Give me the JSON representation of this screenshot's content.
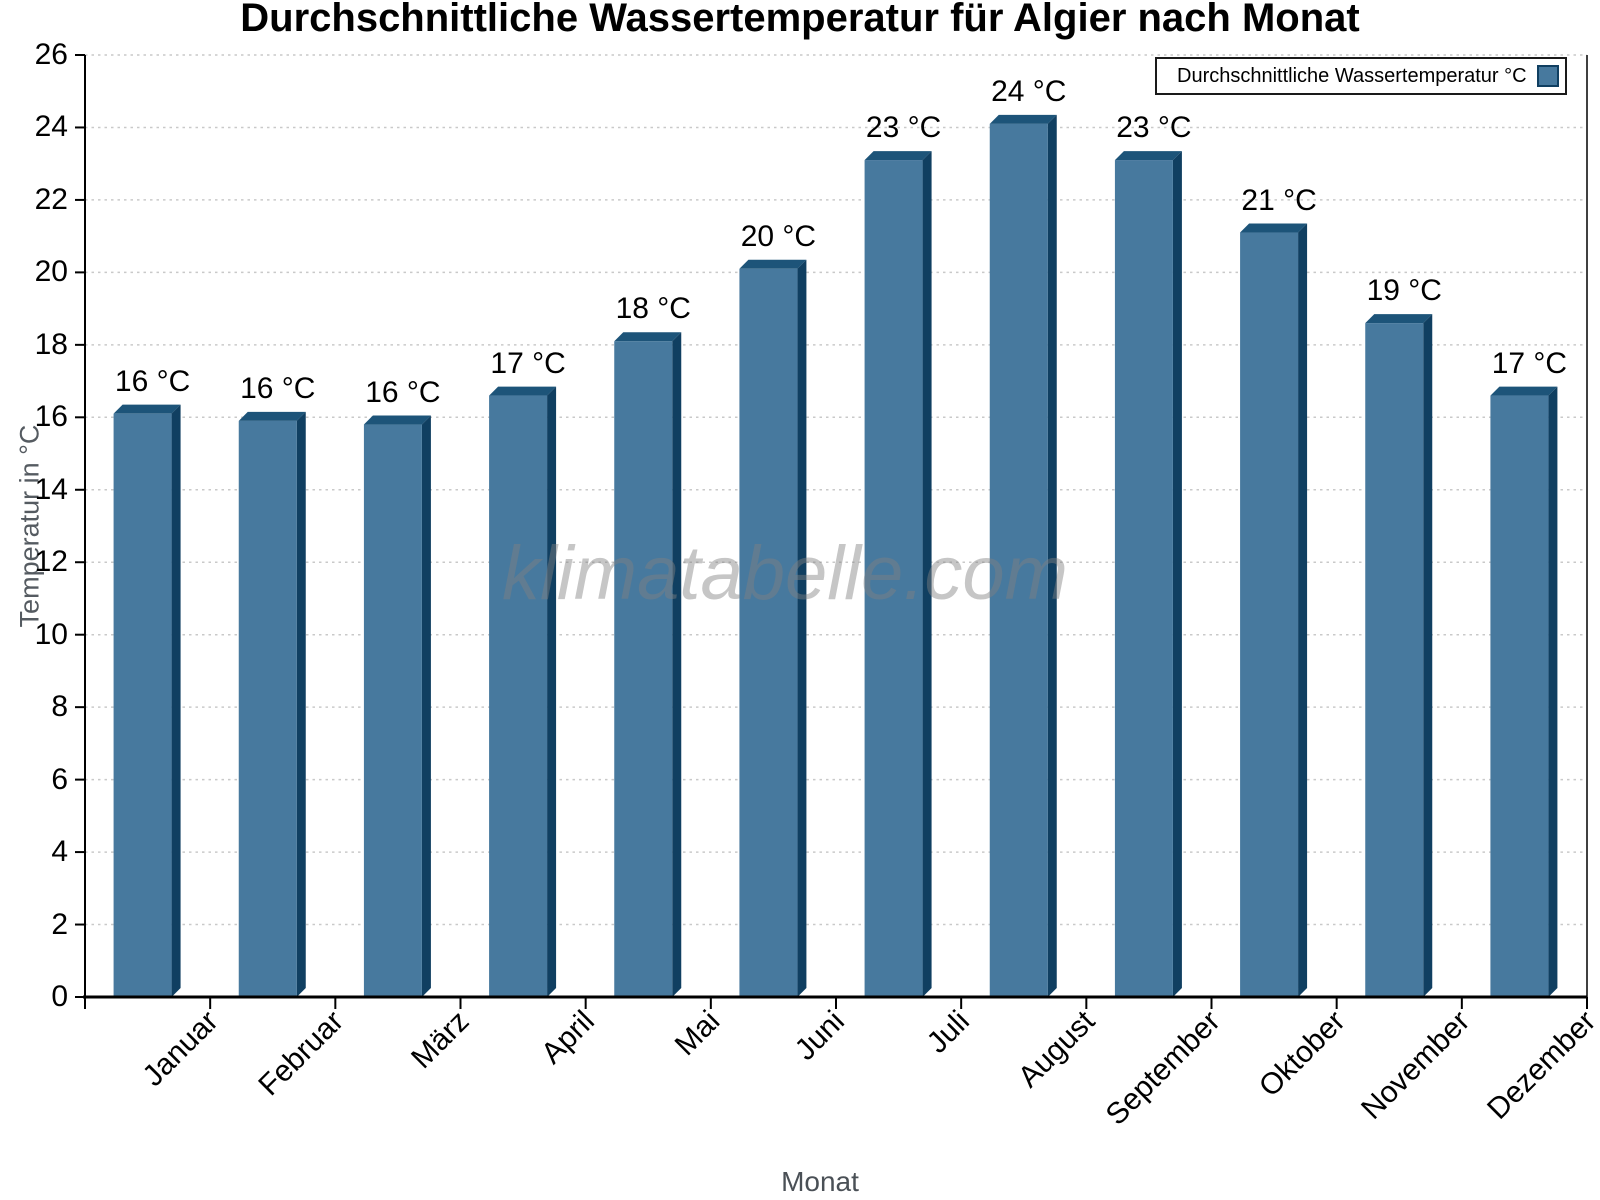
{
  "chart_data": {
    "type": "bar",
    "title": "Durchschnittliche Wassertemperatur für Algier nach Monat",
    "xlabel": "Monat",
    "ylabel": "Temperatur in °C",
    "categories": [
      "Januar",
      "Februar",
      "März",
      "April",
      "Mai",
      "Juni",
      "Juli",
      "August",
      "September",
      "Oktober",
      "November",
      "Dezember"
    ],
    "series": [
      {
        "name": "Durchschnittliche Wassertemperatur °C",
        "values": [
          16.1,
          15.9,
          15.8,
          16.6,
          18.1,
          20.1,
          23.1,
          24.1,
          23.1,
          21.1,
          18.6,
          16.6
        ],
        "bar_labels": [
          "16 °C",
          "16 °C",
          "16 °C",
          "17 °C",
          "18 °C",
          "20 °C",
          "23 °C",
          "24 °C",
          "23 °C",
          "21 °C",
          "19 °C",
          "17 °C"
        ]
      }
    ],
    "ylim": [
      0,
      26
    ],
    "ytick_step": 2,
    "grid": "horizontal-dotted",
    "legend_position": "top-right",
    "colors": {
      "bar_front": "#47799e",
      "bar_top": "#1d5479",
      "bar_side": "#103f61",
      "axis": "#000000",
      "gridline": "#c9c9c9",
      "axis_title_text": "#555b61"
    }
  },
  "legend": {
    "label": "Durchschnittliche Wassertemperatur °C"
  },
  "watermark": {
    "text": "klimatabelle.com"
  }
}
